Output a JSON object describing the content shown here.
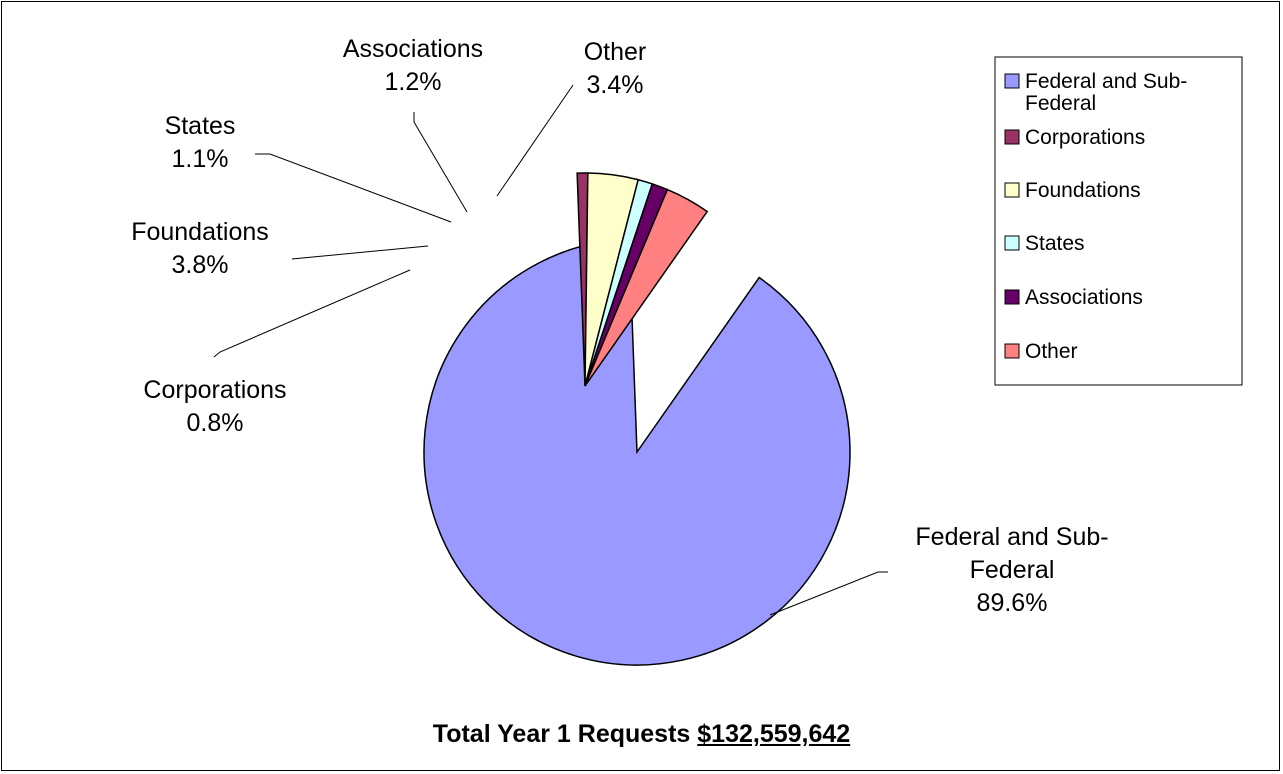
{
  "chart_data": {
    "type": "pie",
    "title": "Total Year 1 Requests",
    "total": "$132,559,642",
    "slices": [
      {
        "name": "Federal and Sub-Federal",
        "label_lines": [
          "Federal and Sub-",
          "Federal"
        ],
        "value": 89.6,
        "value_label": "89.6%",
        "color": "#9999FF"
      },
      {
        "name": "Corporations",
        "label_lines": [
          "Corporations"
        ],
        "value": 0.8,
        "value_label": "0.8%",
        "color": "#993366"
      },
      {
        "name": "Foundations",
        "label_lines": [
          "Foundations"
        ],
        "value": 3.8,
        "value_label": "3.8%",
        "color": "#FFFFCC"
      },
      {
        "name": "States",
        "label_lines": [
          "States"
        ],
        "value": 1.1,
        "value_label": "1.1%",
        "color": "#CCFFFF"
      },
      {
        "name": "Associations",
        "label_lines": [
          "Associations"
        ],
        "value": 1.2,
        "value_label": "1.2%",
        "color": "#660066"
      },
      {
        "name": "Other",
        "label_lines": [
          "Other"
        ],
        "value": 3.4,
        "value_label": "3.4%",
        "color": "#FF8080"
      }
    ],
    "legend": {
      "position": "right",
      "items": [
        {
          "lines": [
            "Federal and Sub-",
            "Federal"
          ],
          "color": "#9999FF"
        },
        {
          "lines": [
            "Corporations"
          ],
          "color": "#993366"
        },
        {
          "lines": [
            "Foundations"
          ],
          "color": "#FFFFCC"
        },
        {
          "lines": [
            "States"
          ],
          "color": "#CCFFFF"
        },
        {
          "lines": [
            "Associations"
          ],
          "color": "#660066"
        },
        {
          "lines": [
            "Other"
          ],
          "color": "#FF8080"
        }
      ]
    },
    "exploded_slice": "Federal and Sub-Federal"
  }
}
